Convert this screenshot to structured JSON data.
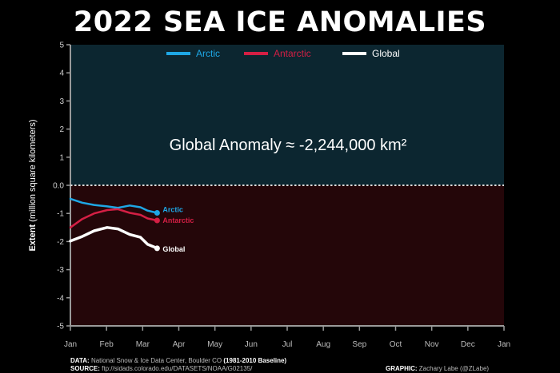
{
  "title": "2022 SEA ICE ANOMALIES",
  "footer": {
    "data_label": "DATA:",
    "data_text": "National Snow & Ice Data Center, Boulder CO",
    "baseline": "(1981-2010 Baseline)",
    "source_label": "SOURCE:",
    "source_text": "ftp://sidads.colorado.edu/DATASETS/NOAA/G02135/",
    "graphic_label": "GRAPHIC:",
    "graphic_text": "Zachary Labe (@ZLabe)"
  },
  "chart_data": {
    "type": "line",
    "title": "2022 SEA ICE ANOMALIES",
    "ylabel_bold": "Extent",
    "ylabel_rest": "(million square kilometers)",
    "annotation": "Global Anomaly ≈ -2,244,000 km²",
    "ylim": [
      -5,
      5
    ],
    "yticks": [
      "5",
      "4",
      "3",
      "2",
      "1",
      "0.0",
      "-1",
      "-2",
      "-3",
      "-4",
      "-5"
    ],
    "xticks": [
      "Jan",
      "Feb",
      "Mar",
      "Apr",
      "May",
      "Jun",
      "Jul",
      "Aug",
      "Sep",
      "Oct",
      "Nov",
      "Dec",
      "Jan"
    ],
    "x_days": [
      0,
      10,
      20,
      31,
      40,
      50,
      59,
      65,
      73
    ],
    "series": [
      {
        "name": "Arctic",
        "color": "#1ea7e5",
        "values": [
          -0.48,
          -0.62,
          -0.7,
          -0.75,
          -0.8,
          -0.72,
          -0.78,
          -0.9,
          -0.98
        ]
      },
      {
        "name": "Antarctic",
        "color": "#d41f44",
        "values": [
          -1.5,
          -1.2,
          -1.0,
          -0.88,
          -0.85,
          -0.98,
          -1.05,
          -1.18,
          -1.25
        ]
      },
      {
        "name": "Global",
        "color": "#ffffff",
        "values": [
          -1.98,
          -1.82,
          -1.62,
          -1.5,
          -1.55,
          -1.75,
          -1.85,
          -2.1,
          -2.24
        ]
      }
    ],
    "legend": [
      "Arctic",
      "Antarctic",
      "Global"
    ],
    "legend_position": "top-center",
    "upper_bg": "#0c2630",
    "lower_bg": "#240609",
    "zero_line": "dashed"
  }
}
